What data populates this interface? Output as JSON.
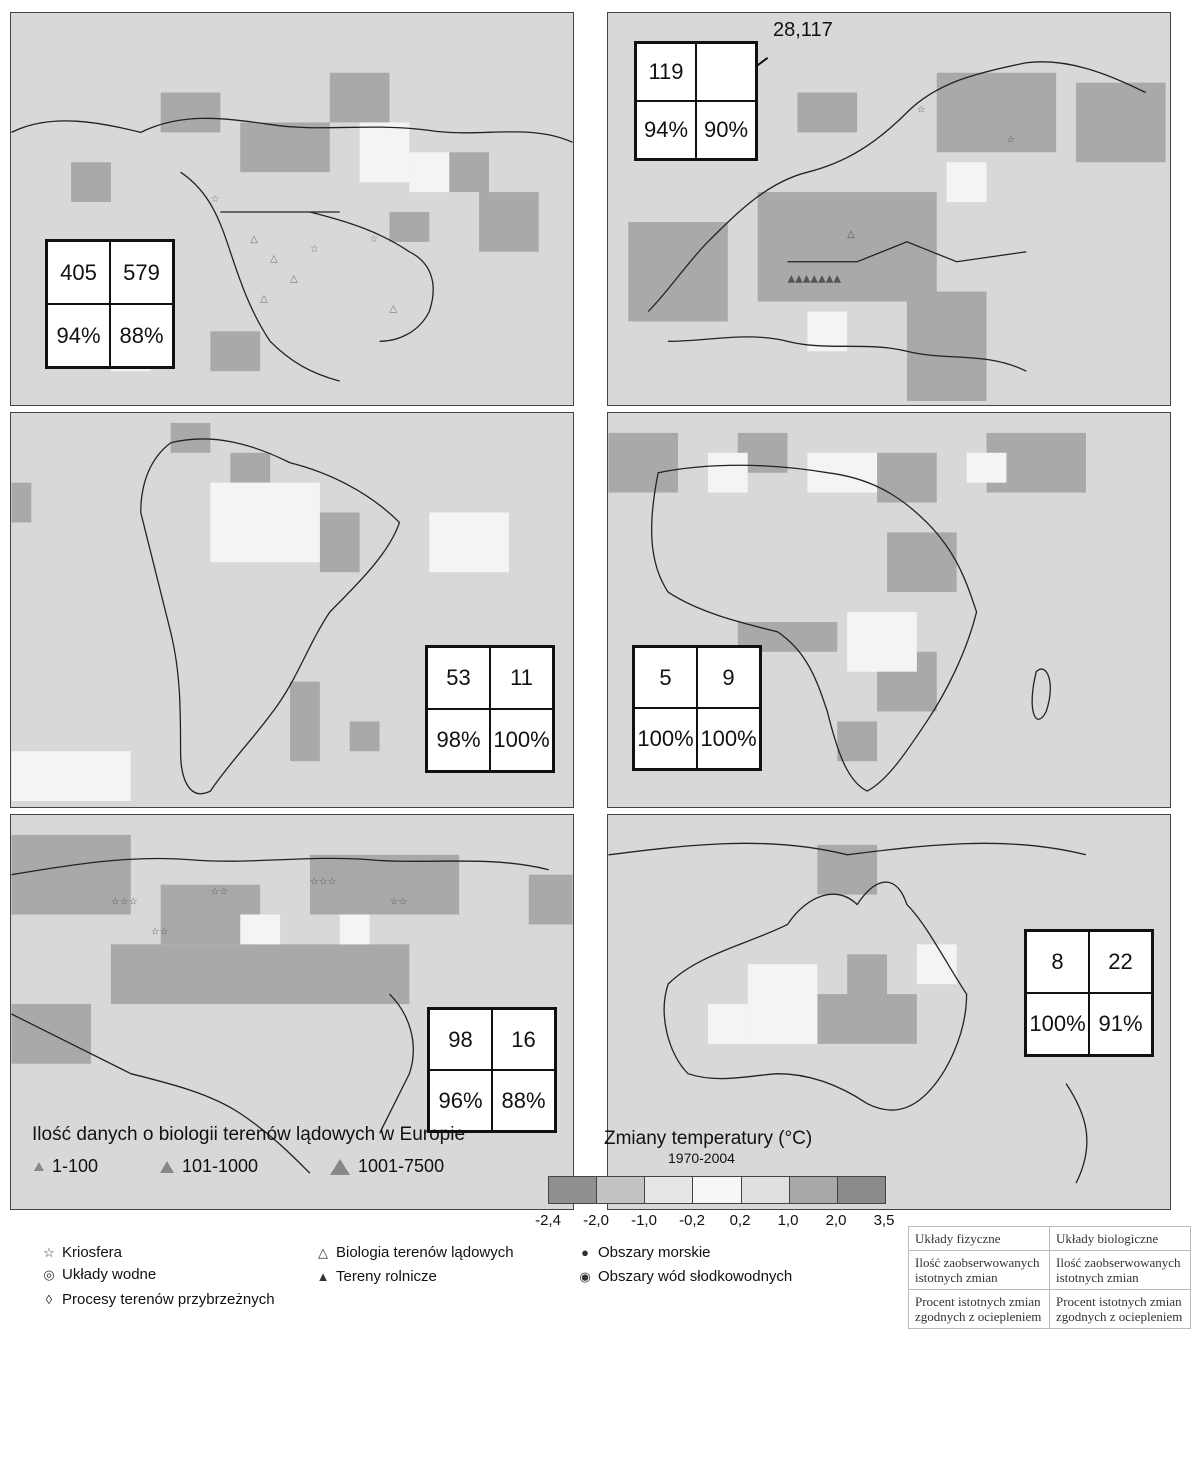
{
  "panels": [
    {
      "id": "north-america",
      "stats": {
        "physical_count": "405",
        "biological_count": "579",
        "physical_pct": "94%",
        "biological_pct": "88%"
      }
    },
    {
      "id": "europe",
      "stats": {
        "physical_count": "119",
        "biological_count": "",
        "physical_pct": "94%",
        "biological_pct": "90%"
      },
      "callout": "28,117"
    },
    {
      "id": "south-america",
      "stats": {
        "physical_count": "53",
        "biological_count": "11",
        "physical_pct": "98%",
        "biological_pct": "100%"
      }
    },
    {
      "id": "africa",
      "stats": {
        "physical_count": "5",
        "biological_count": "9",
        "physical_pct": "100%",
        "biological_pct": "100%"
      }
    },
    {
      "id": "asia",
      "stats": {
        "physical_count": "98",
        "biological_count": "16",
        "physical_pct": "96%",
        "biological_pct": "88%"
      }
    },
    {
      "id": "australia",
      "stats": {
        "physical_count": "8",
        "biological_count": "22",
        "physical_pct": "100%",
        "biological_pct": "91%"
      }
    }
  ],
  "legend": {
    "symbols": [
      {
        "icon": "star-icon",
        "glyph": "☆",
        "label": "Kriosfera"
      },
      {
        "icon": "circle-icon",
        "glyph": "◎",
        "label": "Układy wodne"
      },
      {
        "icon": "diamond-icon",
        "glyph": "◊",
        "label": "Procesy terenów przybrzeżnych"
      },
      {
        "icon": "triangle-outline-icon",
        "glyph": "△",
        "label": "Biologia terenów lądowych"
      },
      {
        "icon": "triangle-filled-icon",
        "glyph": "▲",
        "label": "Tereny rolnicze"
      },
      {
        "icon": "disc-icon",
        "glyph": "●",
        "label": "Obszary morskie"
      },
      {
        "icon": "dotted-disc-icon",
        "glyph": "◉",
        "label": "Obszary wód słodkowodnych"
      }
    ],
    "counts_title": "Ilość danych o biologii terenów lądowych w Europie",
    "counts": [
      "1-100",
      "101-1000",
      "1001-7500"
    ],
    "scale_title": "Zmiany temperatury (°C)",
    "scale_period": "1970-2004",
    "scale_ticks": [
      "-2,4",
      "-2,0",
      "-1,0",
      "-0,2",
      "0,2",
      "1,0",
      "2,0",
      "3,5"
    ],
    "scale_colors": [
      "#8f8f8f",
      "#c2c2c2",
      "#e6e6e6",
      "#f7f7f7",
      "#e0e0e0",
      "#a8a8a8",
      "#8a8a8a"
    ]
  },
  "key_table": {
    "col1_header": "Układy fizyczne",
    "col2_header": "Układy biologiczne",
    "row1_col1": "Ilość zaobserwowanych istotnych zmian",
    "row1_col2": "Ilość zaobserwowanych istotnych zmian",
    "row2_col1": "Procent istotnych zmian zgodnych z ociepleniem",
    "row2_col2": "Procent istotnych zmian zgodnych z ociepleniem"
  }
}
